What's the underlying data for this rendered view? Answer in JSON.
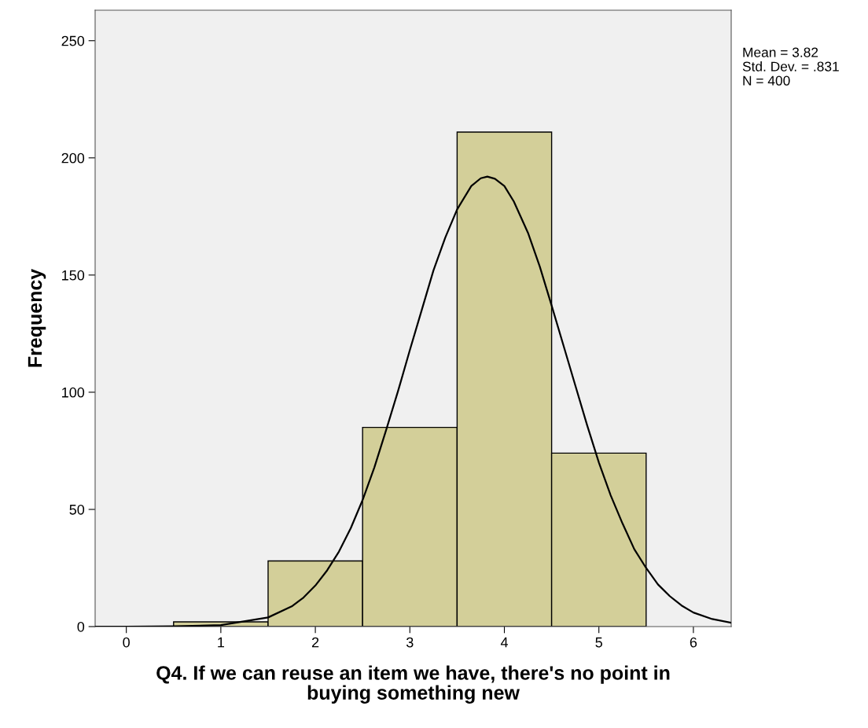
{
  "chart_data": {
    "type": "histogram",
    "xlabel": "Q4. If we can reuse an item we have, there's no point in\nbuying something new",
    "ylabel": "Frequency",
    "annotations": [
      "Mean = 3.82",
      "Std. Dev. = .831",
      "N = 400"
    ],
    "bins": [
      0.5,
      1.5,
      2.5,
      3.5,
      4.5,
      5.5
    ],
    "series": [
      {
        "type": "histogram",
        "color": "#d3cf99",
        "values": [
          2,
          28,
          85,
          211,
          74
        ]
      },
      {
        "type": "line",
        "color": "#000000",
        "x": [
          -0.33,
          0,
          0.5,
          1,
          1.5,
          1.75,
          1.875,
          2,
          2.125,
          2.25,
          2.375,
          2.5,
          2.625,
          2.75,
          2.875,
          3,
          3.125,
          3.25,
          3.375,
          3.5,
          3.65,
          3.75,
          3.82,
          3.9,
          4,
          4.1,
          4.25,
          4.375,
          4.5,
          4.625,
          4.75,
          4.875,
          5,
          5.125,
          5.25,
          5.375,
          5.5,
          5.625,
          5.75,
          5.875,
          6,
          6.2,
          6.4
        ],
        "values": [
          0,
          0,
          0.1,
          0.6,
          3.9,
          8.6,
          12.4,
          17.5,
          24,
          32,
          42,
          54,
          68,
          84,
          100.5,
          118,
          135,
          152,
          166,
          178,
          188,
          191.3,
          192,
          191.1,
          188,
          181.4,
          168,
          153.6,
          137,
          120,
          103,
          86,
          70,
          56,
          44,
          33,
          25,
          18,
          13,
          9,
          6,
          3.2,
          1.6
        ]
      }
    ],
    "xlim": [
      -0.33,
      6.4
    ],
    "ylim": [
      0,
      263
    ],
    "xticks": [
      0,
      1,
      2,
      3,
      4,
      5,
      6
    ],
    "yticks": [
      0,
      50,
      100,
      150,
      200,
      250
    ],
    "grid": false,
    "legend": false,
    "marker": "none",
    "line_style": "solid"
  }
}
